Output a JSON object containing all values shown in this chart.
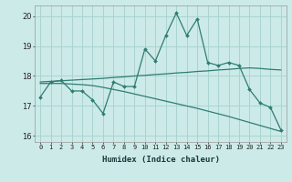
{
  "xlabel": "Humidex (Indice chaleur)",
  "background_color": "#cceae8",
  "grid_color": "#aad4d0",
  "line_color": "#2e7d72",
  "xlim": [
    -0.5,
    23.5
  ],
  "ylim": [
    15.8,
    20.35
  ],
  "yticks": [
    16,
    17,
    18,
    19,
    20
  ],
  "xticks": [
    0,
    1,
    2,
    3,
    4,
    5,
    6,
    7,
    8,
    9,
    10,
    11,
    12,
    13,
    14,
    15,
    16,
    17,
    18,
    19,
    20,
    21,
    22,
    23
  ],
  "series1_x": [
    0,
    1,
    2,
    3,
    4,
    5,
    6,
    7,
    8,
    9,
    10,
    11,
    12,
    13,
    14,
    15,
    16,
    17,
    18,
    19,
    20,
    21,
    22,
    23
  ],
  "series1_y": [
    17.3,
    17.8,
    17.85,
    17.5,
    17.5,
    17.2,
    16.75,
    17.8,
    17.65,
    17.65,
    18.9,
    18.5,
    19.35,
    20.1,
    19.35,
    19.9,
    18.45,
    18.35,
    18.45,
    18.35,
    17.55,
    17.1,
    16.95,
    16.2
  ],
  "series2_x": [
    0,
    1,
    2,
    3,
    4,
    5,
    6,
    7,
    8,
    9,
    10,
    11,
    12,
    13,
    14,
    15,
    16,
    17,
    18,
    19,
    20,
    21,
    22,
    23
  ],
  "series2_y": [
    17.8,
    17.82,
    17.84,
    17.86,
    17.88,
    17.9,
    17.92,
    17.95,
    17.97,
    18.0,
    18.02,
    18.05,
    18.07,
    18.1,
    18.12,
    18.15,
    18.17,
    18.2,
    18.22,
    18.25,
    18.27,
    18.25,
    18.22,
    18.2
  ],
  "series3_x": [
    0,
    1,
    2,
    3,
    4,
    5,
    6,
    7,
    8,
    9,
    10,
    11,
    12,
    13,
    14,
    15,
    16,
    17,
    18,
    19,
    20,
    21,
    22,
    23
  ],
  "series3_y": [
    17.75,
    17.75,
    17.75,
    17.73,
    17.71,
    17.68,
    17.62,
    17.55,
    17.48,
    17.4,
    17.32,
    17.24,
    17.16,
    17.08,
    17.0,
    16.92,
    16.83,
    16.74,
    16.65,
    16.55,
    16.45,
    16.35,
    16.25,
    16.15
  ]
}
